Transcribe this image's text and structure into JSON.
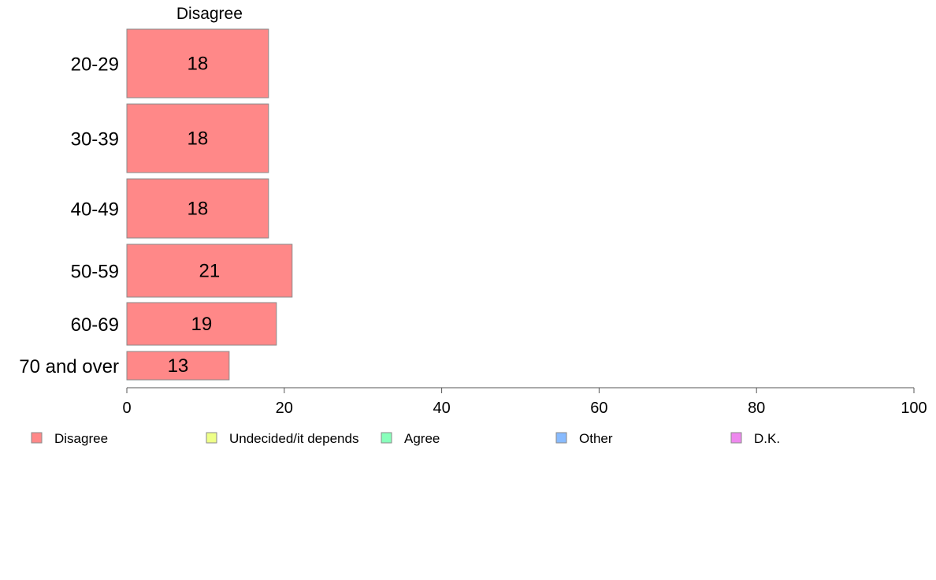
{
  "chart_data": {
    "type": "bar",
    "orientation": "horizontal",
    "stacked": true,
    "header": "Disagree",
    "categories": [
      "20-29",
      "30-39",
      "40-49",
      "50-59",
      "60-69",
      "70 and over"
    ],
    "series": [
      {
        "name": "Disagree",
        "color": "#ff8888",
        "values": [
          18,
          18,
          18,
          21,
          19,
          13
        ]
      },
      {
        "name": "Undecided/it depends",
        "color": "#eeff88",
        "values": [
          null,
          null,
          null,
          null,
          null,
          null
        ]
      },
      {
        "name": "Agree",
        "color": "#88ffbb",
        "values": [
          null,
          null,
          null,
          null,
          null,
          null
        ]
      },
      {
        "name": "Other",
        "color": "#88bbff",
        "values": [
          null,
          null,
          null,
          null,
          null,
          null
        ]
      },
      {
        "name": "D.K.",
        "color": "#ee88ee",
        "values": [
          null,
          null,
          null,
          null,
          null,
          null
        ]
      }
    ],
    "xlim": [
      0,
      100
    ],
    "xticks": [
      0,
      20,
      40,
      60,
      80,
      100
    ],
    "grid": false,
    "legend_position": "bottom"
  }
}
